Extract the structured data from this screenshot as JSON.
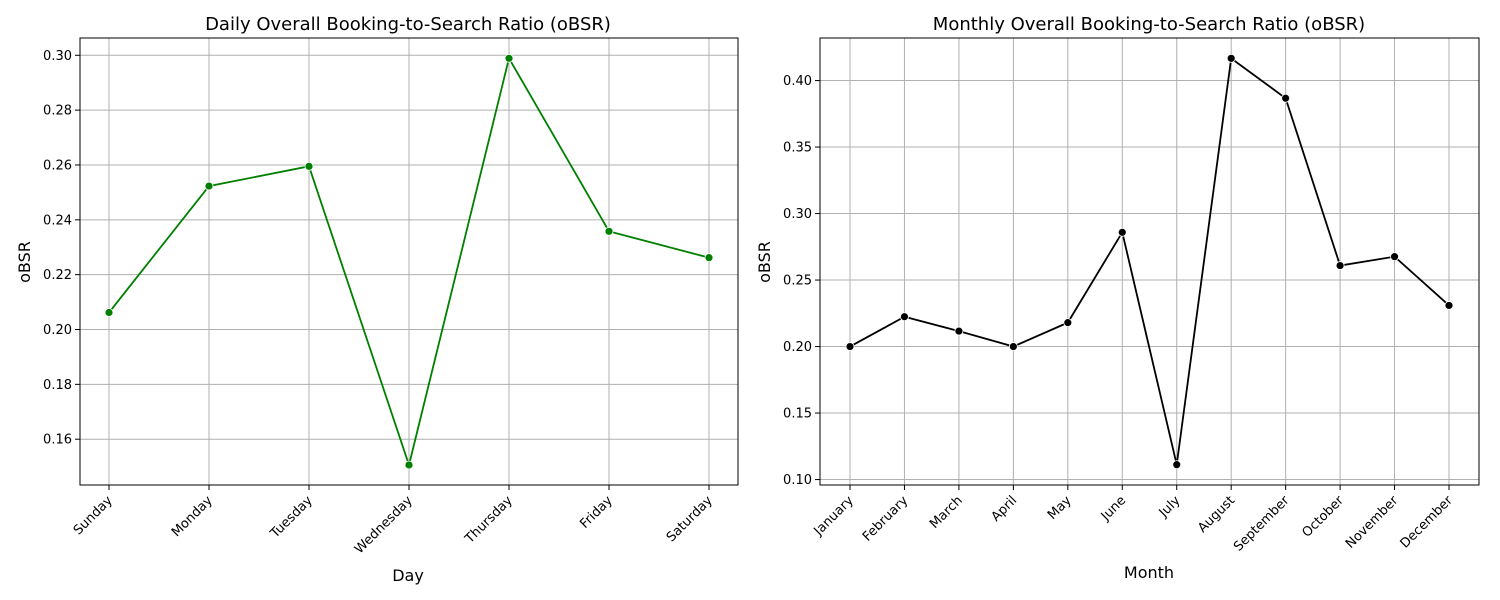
{
  "chart_data": [
    {
      "type": "line",
      "title": "Daily Overall Booking-to-Search Ratio (oBSR)",
      "xlabel": "Day",
      "ylabel": "oBSR",
      "categories": [
        "Sunday",
        "Monday",
        "Tuesday",
        "Wednesday",
        "Thursday",
        "Friday",
        "Saturday"
      ],
      "values": [
        0.2062,
        0.2523,
        0.2595,
        0.1506,
        0.2989,
        0.2358,
        0.2262
      ],
      "yticks": [
        0.16,
        0.18,
        0.2,
        0.22,
        0.24,
        0.26,
        0.28,
        0.3
      ],
      "ytick_labels": [
        "0.16",
        "0.18",
        "0.20",
        "0.22",
        "0.24",
        "0.26",
        "0.28",
        "0.30"
      ],
      "ylim": [
        0.1433,
        0.3063
      ],
      "grid": true,
      "marker": "circle",
      "color": "#008000"
    },
    {
      "type": "line",
      "title": "Monthly Overall Booking-to-Search Ratio (oBSR)",
      "xlabel": "Month",
      "ylabel": "oBSR",
      "categories": [
        "January",
        "February",
        "March",
        "April",
        "May",
        "June",
        "July",
        "August",
        "September",
        "October",
        "November",
        "December"
      ],
      "values": [
        0.2,
        0.2224,
        0.2116,
        0.2,
        0.218,
        0.2859,
        0.1112,
        0.4167,
        0.3867,
        0.2609,
        0.2676,
        0.2309
      ],
      "yticks": [
        0.1,
        0.15,
        0.2,
        0.25,
        0.3,
        0.35,
        0.4
      ],
      "ytick_labels": [
        "0.10",
        "0.15",
        "0.20",
        "0.25",
        "0.30",
        "0.35",
        "0.40"
      ],
      "ylim": [
        0.0959,
        0.432
      ],
      "grid": true,
      "marker": "circle",
      "color": "#000000"
    }
  ]
}
